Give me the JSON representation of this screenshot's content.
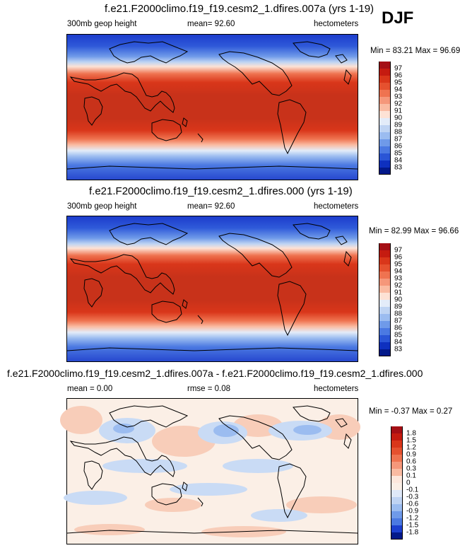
{
  "season": "DJF",
  "panels": [
    {
      "title": "f.e21.F2000climo.f19_f19.cesm2_1.dfires.007a (yrs 1-19)",
      "left_label": "300mb geop height",
      "center_label": "mean=  92.60",
      "right_label": "hectometers",
      "minmax": "Min = 83.21 Max = 96.69",
      "colorbar": {
        "labels": [
          "97",
          "96",
          "95",
          "94",
          "93",
          "92",
          "91",
          "90",
          "89",
          "88",
          "87",
          "86",
          "85",
          "84",
          "83"
        ],
        "colors": [
          "#a50f15",
          "#c51b10",
          "#d9361a",
          "#e5512f",
          "#ef7350",
          "#f5977a",
          "#fabba2",
          "#fde2d5",
          "#e3ecf9",
          "#bfd4f3",
          "#9bbcf0",
          "#6f9ae9",
          "#4b79e2",
          "#2a55d6",
          "#0e30bf",
          "#03198a"
        ]
      }
    },
    {
      "title": "f.e21.F2000climo.f19_f19.cesm2_1.dfires.000 (yrs 1-19)",
      "left_label": "300mb geop height",
      "center_label": "mean=  92.60",
      "right_label": "hectometers",
      "minmax": "Min = 82.99 Max = 96.66",
      "colorbar": {
        "labels": [
          "97",
          "96",
          "95",
          "94",
          "93",
          "92",
          "91",
          "90",
          "89",
          "88",
          "87",
          "86",
          "85",
          "84",
          "83"
        ],
        "colors": [
          "#a50f15",
          "#c51b10",
          "#d9361a",
          "#e5512f",
          "#ef7350",
          "#f5977a",
          "#fabba2",
          "#fde2d5",
          "#e3ecf9",
          "#bfd4f3",
          "#9bbcf0",
          "#6f9ae9",
          "#4b79e2",
          "#2a55d6",
          "#0e30bf",
          "#03198a"
        ]
      }
    },
    {
      "title": "f.e21.F2000climo.f19_f19.cesm2_1.dfires.007a - f.e21.F2000climo.f19_f19.cesm2_1.dfires.000",
      "left_label": "mean =  0.00",
      "center_label": "rmse =  0.08",
      "right_label": "hectometers",
      "minmax": "Min = -0.37 Max =  0.27",
      "colorbar": {
        "labels": [
          "1.8",
          "1.5",
          "1.2",
          "0.9",
          "0.6",
          "0.3",
          "0.1",
          "0",
          "-0.1",
          "-0.3",
          "-0.6",
          "-0.9",
          "-1.2",
          "-1.5",
          "-1.8"
        ],
        "colors": [
          "#a50f15",
          "#c51b10",
          "#d9361a",
          "#e5512f",
          "#ef7350",
          "#f5977a",
          "#fabba2",
          "#fde7dc",
          "#fbefe6",
          "#dfe8f8",
          "#bfd3f3",
          "#9bbcf0",
          "#6f9ae9",
          "#4b79e2",
          "#1c3fcf",
          "#03198a"
        ]
      }
    }
  ]
}
